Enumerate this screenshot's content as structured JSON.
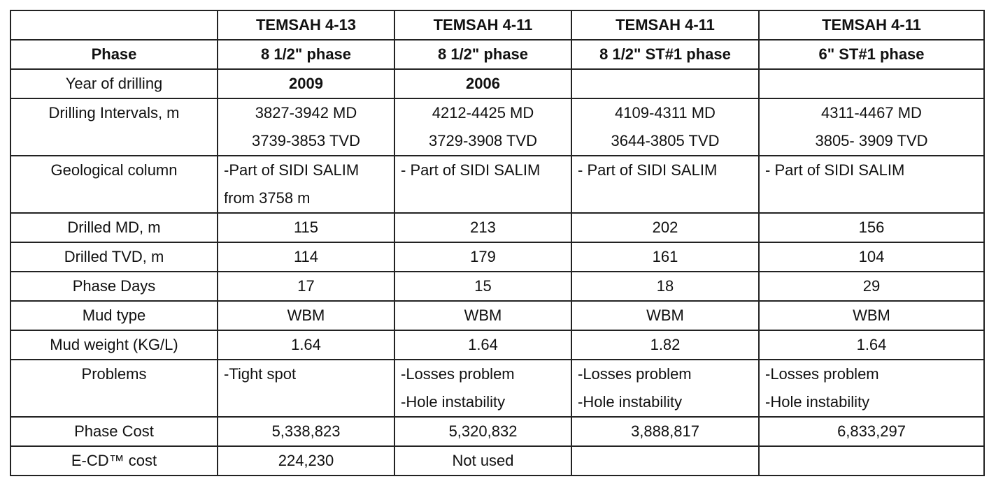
{
  "header": {
    "columns": [
      "TEMSAH 4-13",
      "TEMSAH 4-11",
      "TEMSAH 4-11",
      "TEMSAH 4-11"
    ]
  },
  "rows": {
    "phase": {
      "label": "Phase",
      "values": [
        "8 1/2\" phase",
        "8 1/2\" phase",
        "8 1/2\"  ST#1 phase",
        "6\"  ST#1 phase"
      ]
    },
    "year": {
      "label": "Year of drilling",
      "values": [
        "2009",
        "2006",
        "",
        ""
      ]
    },
    "intervals": {
      "label": "Drilling Intervals, m",
      "values": [
        [
          "3827-3942 MD",
          "3739-3853 TVD"
        ],
        [
          "4212-4425 MD",
          "3729-3908 TVD"
        ],
        [
          "4109-4311 MD",
          "3644-3805 TVD"
        ],
        [
          "4311-4467 MD",
          "3805- 3909 TVD"
        ]
      ]
    },
    "geology": {
      "label": "Geological column",
      "values": [
        [
          "-Part of SIDI SALIM",
          "from 3758 m"
        ],
        [
          "- Part of SIDI SALIM"
        ],
        [
          "- Part of SIDI SALIM"
        ],
        [
          "- Part of SIDI SALIM"
        ]
      ]
    },
    "drilled_md": {
      "label": "Drilled MD, m",
      "values": [
        "115",
        "213",
        "202",
        "156"
      ]
    },
    "drilled_tvd": {
      "label": "Drilled TVD, m",
      "values": [
        "114",
        "179",
        "161",
        "104"
      ]
    },
    "phase_days": {
      "label": "Phase Days",
      "values": [
        "17",
        "15",
        "18",
        "29"
      ]
    },
    "mud_type": {
      "label": "Mud type",
      "values": [
        "WBM",
        "WBM",
        "WBM",
        "WBM"
      ]
    },
    "mud_weight": {
      "label": "Mud weight (KG/L)",
      "values": [
        "1.64",
        "1.64",
        "1.82",
        "1.64"
      ]
    },
    "problems": {
      "label": "Problems",
      "values": [
        [
          "-Tight spot"
        ],
        [
          "-Losses problem",
          "-Hole instability"
        ],
        [
          "-Losses problem",
          "-Hole instability"
        ],
        [
          "-Losses problem",
          "-Hole instability"
        ]
      ]
    },
    "phase_cost": {
      "label": "Phase Cost",
      "values": [
        "5,338,823",
        "5,320,832",
        "3,888,817",
        "6,833,297"
      ]
    },
    "ecd_cost": {
      "label": "E-CD™ cost",
      "values": [
        "224,230",
        "Not used",
        "",
        ""
      ]
    }
  }
}
